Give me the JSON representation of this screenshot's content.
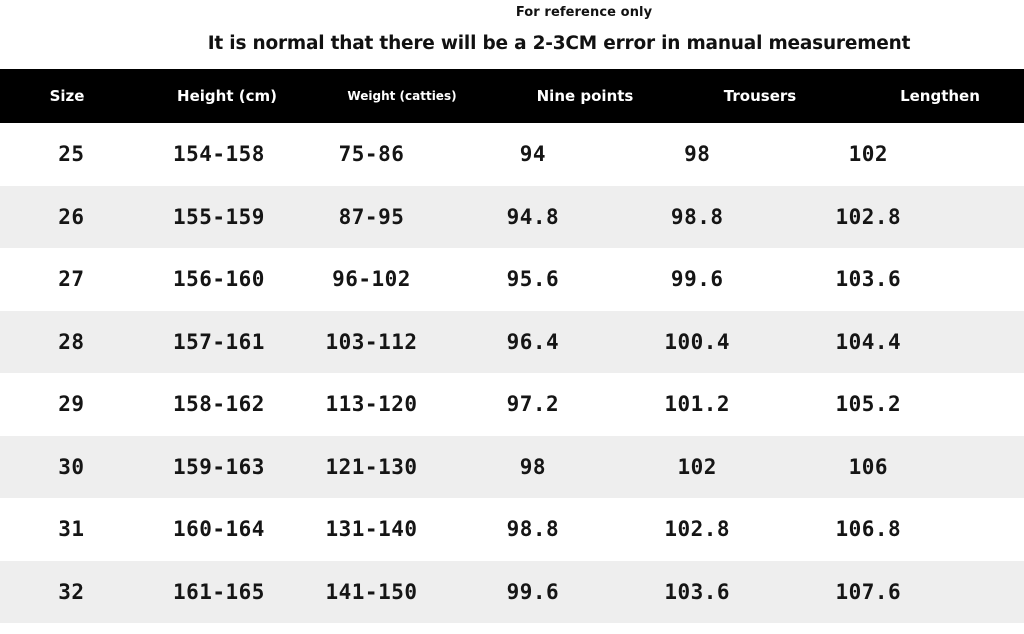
{
  "note": "For reference only",
  "headline": "It is normal that there will be a 2-3CM error in manual measurement",
  "table": {
    "headers": {
      "size": "Size",
      "height": "Height (cm)",
      "weight": "Weight (catties)",
      "nine_points": "Nine points",
      "trousers": "Trousers",
      "lengthen": "Lengthen"
    },
    "rows": [
      {
        "size": "25",
        "height": "154-158",
        "weight": "75-86",
        "nine_points": "94",
        "trousers": "98",
        "lengthen": "102"
      },
      {
        "size": "26",
        "height": "155-159",
        "weight": "87-95",
        "nine_points": "94.8",
        "trousers": "98.8",
        "lengthen": "102.8"
      },
      {
        "size": "27",
        "height": "156-160",
        "weight": "96-102",
        "nine_points": "95.6",
        "trousers": "99.6",
        "lengthen": "103.6"
      },
      {
        "size": "28",
        "height": "157-161",
        "weight": "103-112",
        "nine_points": "96.4",
        "trousers": "100.4",
        "lengthen": "104.4"
      },
      {
        "size": "29",
        "height": "158-162",
        "weight": "113-120",
        "nine_points": "97.2",
        "trousers": "101.2",
        "lengthen": "105.2"
      },
      {
        "size": "30",
        "height": "159-163",
        "weight": "121-130",
        "nine_points": "98",
        "trousers": "102",
        "lengthen": "106"
      },
      {
        "size": "31",
        "height": "160-164",
        "weight": "131-140",
        "nine_points": "98.8",
        "trousers": "102.8",
        "lengthen": "106.8"
      },
      {
        "size": "32",
        "height": "161-165",
        "weight": "141-150",
        "nine_points": "99.6",
        "trousers": "103.6",
        "lengthen": "107.6"
      }
    ]
  },
  "colors": {
    "header_background": "#000000",
    "header_text": "#ffffff",
    "stripe_background": "#eeeeee",
    "row_background": "#ffffff"
  }
}
